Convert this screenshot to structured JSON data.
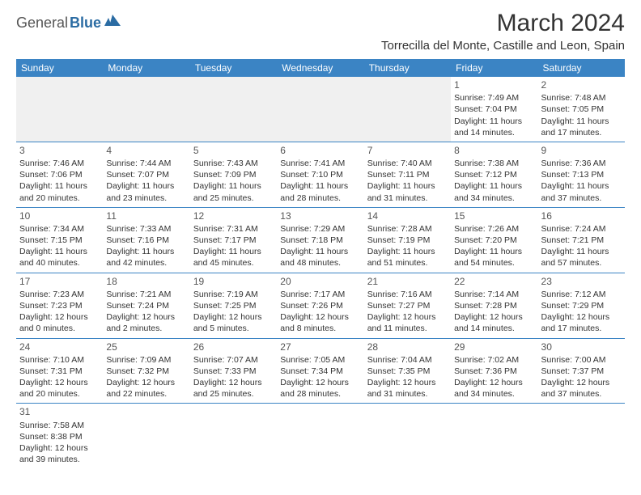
{
  "logo": {
    "text1": "General",
    "text2": "Blue"
  },
  "header": {
    "title": "March 2024",
    "location": "Torrecilla del Monte, Castille and Leon, Spain"
  },
  "colors": {
    "header_bg": "#3b84c4",
    "header_fg": "#ffffff",
    "cell_border": "#3b84c4",
    "empty_bg": "#f0f0f0",
    "logo_gray": "#555555",
    "logo_blue": "#2b6ca3"
  },
  "weekdays": [
    "Sunday",
    "Monday",
    "Tuesday",
    "Wednesday",
    "Thursday",
    "Friday",
    "Saturday"
  ],
  "weeks": [
    [
      null,
      null,
      null,
      null,
      null,
      {
        "n": "1",
        "sr": "Sunrise: 7:49 AM",
        "ss": "Sunset: 7:04 PM",
        "d1": "Daylight: 11 hours",
        "d2": "and 14 minutes."
      },
      {
        "n": "2",
        "sr": "Sunrise: 7:48 AM",
        "ss": "Sunset: 7:05 PM",
        "d1": "Daylight: 11 hours",
        "d2": "and 17 minutes."
      }
    ],
    [
      {
        "n": "3",
        "sr": "Sunrise: 7:46 AM",
        "ss": "Sunset: 7:06 PM",
        "d1": "Daylight: 11 hours",
        "d2": "and 20 minutes."
      },
      {
        "n": "4",
        "sr": "Sunrise: 7:44 AM",
        "ss": "Sunset: 7:07 PM",
        "d1": "Daylight: 11 hours",
        "d2": "and 23 minutes."
      },
      {
        "n": "5",
        "sr": "Sunrise: 7:43 AM",
        "ss": "Sunset: 7:09 PM",
        "d1": "Daylight: 11 hours",
        "d2": "and 25 minutes."
      },
      {
        "n": "6",
        "sr": "Sunrise: 7:41 AM",
        "ss": "Sunset: 7:10 PM",
        "d1": "Daylight: 11 hours",
        "d2": "and 28 minutes."
      },
      {
        "n": "7",
        "sr": "Sunrise: 7:40 AM",
        "ss": "Sunset: 7:11 PM",
        "d1": "Daylight: 11 hours",
        "d2": "and 31 minutes."
      },
      {
        "n": "8",
        "sr": "Sunrise: 7:38 AM",
        "ss": "Sunset: 7:12 PM",
        "d1": "Daylight: 11 hours",
        "d2": "and 34 minutes."
      },
      {
        "n": "9",
        "sr": "Sunrise: 7:36 AM",
        "ss": "Sunset: 7:13 PM",
        "d1": "Daylight: 11 hours",
        "d2": "and 37 minutes."
      }
    ],
    [
      {
        "n": "10",
        "sr": "Sunrise: 7:34 AM",
        "ss": "Sunset: 7:15 PM",
        "d1": "Daylight: 11 hours",
        "d2": "and 40 minutes."
      },
      {
        "n": "11",
        "sr": "Sunrise: 7:33 AM",
        "ss": "Sunset: 7:16 PM",
        "d1": "Daylight: 11 hours",
        "d2": "and 42 minutes."
      },
      {
        "n": "12",
        "sr": "Sunrise: 7:31 AM",
        "ss": "Sunset: 7:17 PM",
        "d1": "Daylight: 11 hours",
        "d2": "and 45 minutes."
      },
      {
        "n": "13",
        "sr": "Sunrise: 7:29 AM",
        "ss": "Sunset: 7:18 PM",
        "d1": "Daylight: 11 hours",
        "d2": "and 48 minutes."
      },
      {
        "n": "14",
        "sr": "Sunrise: 7:28 AM",
        "ss": "Sunset: 7:19 PM",
        "d1": "Daylight: 11 hours",
        "d2": "and 51 minutes."
      },
      {
        "n": "15",
        "sr": "Sunrise: 7:26 AM",
        "ss": "Sunset: 7:20 PM",
        "d1": "Daylight: 11 hours",
        "d2": "and 54 minutes."
      },
      {
        "n": "16",
        "sr": "Sunrise: 7:24 AM",
        "ss": "Sunset: 7:21 PM",
        "d1": "Daylight: 11 hours",
        "d2": "and 57 minutes."
      }
    ],
    [
      {
        "n": "17",
        "sr": "Sunrise: 7:23 AM",
        "ss": "Sunset: 7:23 PM",
        "d1": "Daylight: 12 hours",
        "d2": "and 0 minutes."
      },
      {
        "n": "18",
        "sr": "Sunrise: 7:21 AM",
        "ss": "Sunset: 7:24 PM",
        "d1": "Daylight: 12 hours",
        "d2": "and 2 minutes."
      },
      {
        "n": "19",
        "sr": "Sunrise: 7:19 AM",
        "ss": "Sunset: 7:25 PM",
        "d1": "Daylight: 12 hours",
        "d2": "and 5 minutes."
      },
      {
        "n": "20",
        "sr": "Sunrise: 7:17 AM",
        "ss": "Sunset: 7:26 PM",
        "d1": "Daylight: 12 hours",
        "d2": "and 8 minutes."
      },
      {
        "n": "21",
        "sr": "Sunrise: 7:16 AM",
        "ss": "Sunset: 7:27 PM",
        "d1": "Daylight: 12 hours",
        "d2": "and 11 minutes."
      },
      {
        "n": "22",
        "sr": "Sunrise: 7:14 AM",
        "ss": "Sunset: 7:28 PM",
        "d1": "Daylight: 12 hours",
        "d2": "and 14 minutes."
      },
      {
        "n": "23",
        "sr": "Sunrise: 7:12 AM",
        "ss": "Sunset: 7:29 PM",
        "d1": "Daylight: 12 hours",
        "d2": "and 17 minutes."
      }
    ],
    [
      {
        "n": "24",
        "sr": "Sunrise: 7:10 AM",
        "ss": "Sunset: 7:31 PM",
        "d1": "Daylight: 12 hours",
        "d2": "and 20 minutes."
      },
      {
        "n": "25",
        "sr": "Sunrise: 7:09 AM",
        "ss": "Sunset: 7:32 PM",
        "d1": "Daylight: 12 hours",
        "d2": "and 22 minutes."
      },
      {
        "n": "26",
        "sr": "Sunrise: 7:07 AM",
        "ss": "Sunset: 7:33 PM",
        "d1": "Daylight: 12 hours",
        "d2": "and 25 minutes."
      },
      {
        "n": "27",
        "sr": "Sunrise: 7:05 AM",
        "ss": "Sunset: 7:34 PM",
        "d1": "Daylight: 12 hours",
        "d2": "and 28 minutes."
      },
      {
        "n": "28",
        "sr": "Sunrise: 7:04 AM",
        "ss": "Sunset: 7:35 PM",
        "d1": "Daylight: 12 hours",
        "d2": "and 31 minutes."
      },
      {
        "n": "29",
        "sr": "Sunrise: 7:02 AM",
        "ss": "Sunset: 7:36 PM",
        "d1": "Daylight: 12 hours",
        "d2": "and 34 minutes."
      },
      {
        "n": "30",
        "sr": "Sunrise: 7:00 AM",
        "ss": "Sunset: 7:37 PM",
        "d1": "Daylight: 12 hours",
        "d2": "and 37 minutes."
      }
    ],
    [
      {
        "n": "31",
        "sr": "Sunrise: 7:58 AM",
        "ss": "Sunset: 8:38 PM",
        "d1": "Daylight: 12 hours",
        "d2": "and 39 minutes."
      },
      null,
      null,
      null,
      null,
      null,
      null
    ]
  ]
}
